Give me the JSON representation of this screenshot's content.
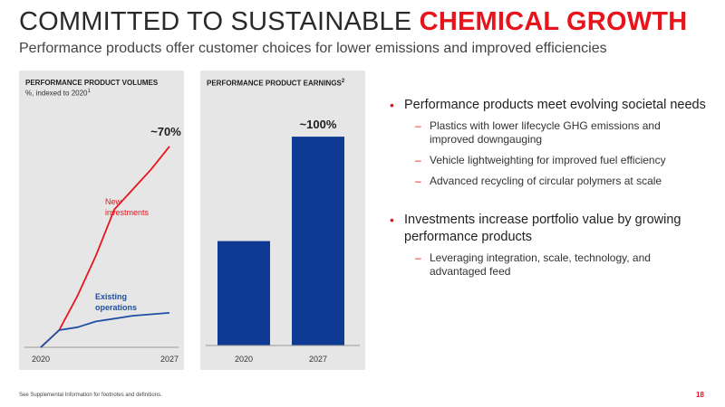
{
  "header": {
    "title_main": "COMMITTED TO SUSTAINABLE ",
    "title_accent": "CHEMICAL GROWTH",
    "subtitle": "Performance products offer customer choices for lower emissions and improved efficiencies"
  },
  "colors": {
    "accent": "#e8141c",
    "bar": "#0e3a93",
    "line_new": "#e8141c",
    "line_existing": "#1f4fa3",
    "panel_bg": "#e6e6e6"
  },
  "chart_data": [
    {
      "type": "line",
      "title": "PERFORMANCE PRODUCT VOLUMES",
      "subtitle": "%, indexed to 2020",
      "subtitle_sup": "1",
      "x": [
        2020,
        2021,
        2022,
        2023,
        2024,
        2025,
        2026,
        2027
      ],
      "xtick_labels": [
        "2020",
        "2027"
      ],
      "ylim": [
        0,
        75
      ],
      "series": [
        {
          "name": "New investments",
          "values": [
            0,
            6,
            18,
            32,
            48,
            55,
            62,
            70
          ]
        },
        {
          "name": "Existing operations",
          "values": [
            0,
            6,
            7,
            9,
            10,
            11,
            11.5,
            12
          ]
        }
      ],
      "annotation": "~70%"
    },
    {
      "type": "bar",
      "title": "PERFORMANCE PRODUCT EARNINGS",
      "title_sup": "2",
      "categories": [
        "2020",
        "2027"
      ],
      "values": [
        100,
        200
      ],
      "ylim": [
        0,
        220
      ],
      "annotation": "~100%"
    }
  ],
  "bullets": [
    {
      "text": "Performance products meet evolving societal needs",
      "subs": [
        "Plastics with lower lifecycle GHG emissions and improved downgauging",
        "Vehicle lightweighting for improved fuel efficiency",
        "Advanced recycling of circular polymers at scale"
      ]
    },
    {
      "text": "Investments increase portfolio value by growing performance products",
      "subs": [
        "Leveraging integration, scale, technology, and advantaged feed"
      ]
    }
  ],
  "bullet_symbol": "•",
  "dash_symbol": "–",
  "footer": {
    "footnote": "See Supplemental Information for footnotes and definitions.",
    "page": "18"
  }
}
